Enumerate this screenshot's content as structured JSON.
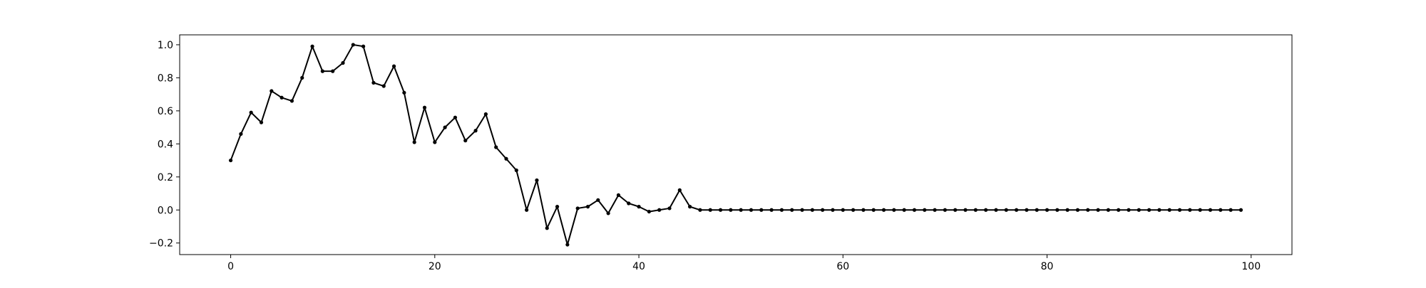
{
  "chart_data": {
    "type": "line",
    "title": "",
    "xlabel": "",
    "ylabel": "",
    "xlim": [
      -5,
      104
    ],
    "ylim": [
      -0.27,
      1.06
    ],
    "x_ticks": [
      0,
      20,
      40,
      60,
      80,
      100
    ],
    "x_tick_labels": [
      "0",
      "20",
      "40",
      "60",
      "80",
      "100"
    ],
    "y_ticks": [
      -0.2,
      0.0,
      0.2,
      0.4,
      0.6,
      0.8,
      1.0
    ],
    "y_tick_labels": [
      "−0.2",
      "0.0",
      "0.2",
      "0.4",
      "0.6",
      "0.8",
      "1.0"
    ],
    "grid": false,
    "legend": false,
    "colors": {
      "line": "#000000",
      "marker": "#000000",
      "axes": "#000000",
      "background": "#ffffff"
    },
    "series": [
      {
        "x": [
          0,
          1,
          2,
          3,
          4,
          5,
          6,
          7,
          8,
          9,
          10,
          11,
          12,
          13,
          14,
          15,
          16,
          17,
          18,
          19,
          20,
          21,
          22,
          23,
          24,
          25,
          26,
          27,
          28,
          29,
          30,
          31,
          32,
          33,
          34,
          35,
          36,
          37,
          38,
          39,
          40,
          41,
          42,
          43,
          44,
          45,
          46,
          47,
          48,
          49,
          50,
          51,
          52,
          53,
          54,
          55,
          56,
          57,
          58,
          59,
          60,
          61,
          62,
          63,
          64,
          65,
          66,
          67,
          68,
          69,
          70,
          71,
          72,
          73,
          74,
          75,
          76,
          77,
          78,
          79,
          80,
          81,
          82,
          83,
          84,
          85,
          86,
          87,
          88,
          89,
          90,
          91,
          92,
          93,
          94,
          95,
          96,
          97,
          98,
          99
        ],
        "values": [
          0.3,
          0.46,
          0.59,
          0.53,
          0.72,
          0.68,
          0.66,
          0.8,
          0.99,
          0.84,
          0.84,
          0.89,
          1.0,
          0.99,
          0.77,
          0.75,
          0.87,
          0.71,
          0.41,
          0.62,
          0.41,
          0.5,
          0.56,
          0.42,
          0.48,
          0.58,
          0.38,
          0.31,
          0.24,
          0.0,
          0.18,
          -0.11,
          0.02,
          -0.21,
          0.01,
          0.02,
          0.06,
          -0.02,
          0.09,
          0.04,
          0.02,
          -0.01,
          0.0,
          0.01,
          0.12,
          0.02,
          0.0,
          0.0,
          0.0,
          0.0,
          0.0,
          0.0,
          0.0,
          0.0,
          0.0,
          0.0,
          0.0,
          0.0,
          0.0,
          0.0,
          0.0,
          0.0,
          0.0,
          0.0,
          0.0,
          0.0,
          0.0,
          0.0,
          0.0,
          0.0,
          0.0,
          0.0,
          0.0,
          0.0,
          0.0,
          0.0,
          0.0,
          0.0,
          0.0,
          0.0,
          0.0,
          0.0,
          0.0,
          0.0,
          0.0,
          0.0,
          0.0,
          0.0,
          0.0,
          0.0,
          0.0,
          0.0,
          0.0,
          0.0,
          0.0,
          0.0,
          0.0,
          0.0,
          0.0,
          0.0
        ]
      }
    ]
  }
}
